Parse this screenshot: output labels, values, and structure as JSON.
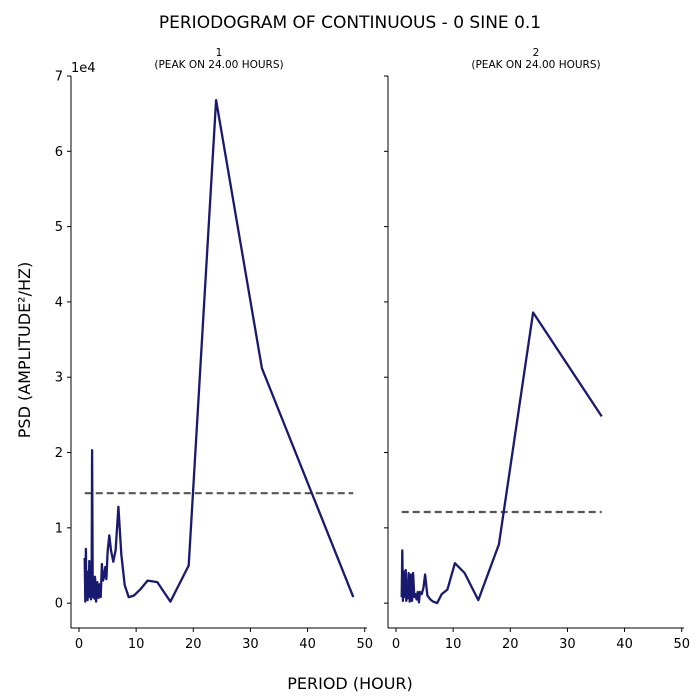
{
  "title": "PERIODOGRAM OF CONTINUOUS - 0 SINE 0.1",
  "xlabel": "PERIOD (HOUR)",
  "ylabel": "PSD (AMPLITUDE²/HZ)",
  "y_multiplier_label": "1e4",
  "chart_data": [
    {
      "type": "line",
      "title": "1",
      "subtitle": "(PEAK ON 24.00 HOURS)",
      "xlim": [
        -1.4,
        50.4
      ],
      "ylim": [
        -3300,
        70000
      ],
      "x_ticks": [
        0,
        10,
        20,
        30,
        40,
        50
      ],
      "y_ticks": [
        0,
        10000,
        20000,
        30000,
        40000,
        50000,
        60000,
        70000
      ],
      "y_tick_labels": [
        "0",
        "1",
        "2",
        "3",
        "4",
        "5",
        "6",
        "7"
      ],
      "line_color": "#191970",
      "threshold": {
        "value": 14600,
        "x_range": [
          1,
          48
        ],
        "color": "#555555",
        "style": "dashed"
      },
      "x": [
        1.0,
        1.1,
        1.2,
        1.3,
        1.4,
        1.5,
        1.6,
        1.7,
        1.8,
        1.9,
        2.0,
        2.1,
        2.2,
        2.3,
        2.4,
        2.5,
        2.6,
        2.7,
        2.8,
        3.0,
        3.2,
        3.4,
        3.6,
        3.8,
        4.0,
        4.2,
        4.4,
        4.6,
        4.8,
        5.0,
        5.3,
        5.6,
        6.0,
        6.4,
        6.9,
        7.4,
        8.0,
        8.7,
        9.6,
        10.7,
        12.0,
        13.7,
        16.0,
        19.2,
        24.0,
        32.0,
        48.0
      ],
      "values": [
        6000,
        200,
        7200,
        500,
        3000,
        400,
        4200,
        800,
        5600,
        1000,
        3000,
        500,
        2000,
        20300,
        3000,
        800,
        2600,
        600,
        3500,
        200,
        2800,
        700,
        2500,
        800,
        5200,
        3000,
        3500,
        4800,
        3200,
        6800,
        9000,
        7000,
        5500,
        7000,
        12800,
        6500,
        2400,
        800,
        1000,
        1800,
        3000,
        2800,
        200,
        5000,
        66800,
        31200,
        800
      ]
    },
    {
      "type": "line",
      "title": "2",
      "subtitle": "(PEAK ON 24.00 HOURS)",
      "xlim": [
        -1.4,
        50.4
      ],
      "ylim": [
        -3300,
        70000
      ],
      "x_ticks": [
        0,
        10,
        20,
        30,
        40,
        50
      ],
      "line_color": "#191970",
      "threshold": {
        "value": 12100,
        "x_range": [
          1,
          36
        ],
        "color": "#555555",
        "style": "dashed"
      },
      "x": [
        1.0,
        1.1,
        1.2,
        1.3,
        1.4,
        1.5,
        1.6,
        1.7,
        1.8,
        1.9,
        2.0,
        2.2,
        2.4,
        2.6,
        2.8,
        3.0,
        3.2,
        3.4,
        3.6,
        3.8,
        4.0,
        4.2,
        4.5,
        4.8,
        5.1,
        5.5,
        6.0,
        6.5,
        7.2,
        8.0,
        9.0,
        10.3,
        12.0,
        14.4,
        18.0,
        24.0,
        36.0
      ],
      "values": [
        800,
        7000,
        300,
        3000,
        800,
        4200,
        1200,
        4400,
        300,
        2000,
        600,
        4000,
        200,
        3800,
        300,
        4000,
        800,
        1200,
        500,
        1500,
        100,
        1500,
        1200,
        2000,
        3800,
        1000,
        500,
        200,
        0,
        1200,
        1800,
        5300,
        4000,
        400,
        7800,
        38600,
        24800
      ]
    }
  ]
}
